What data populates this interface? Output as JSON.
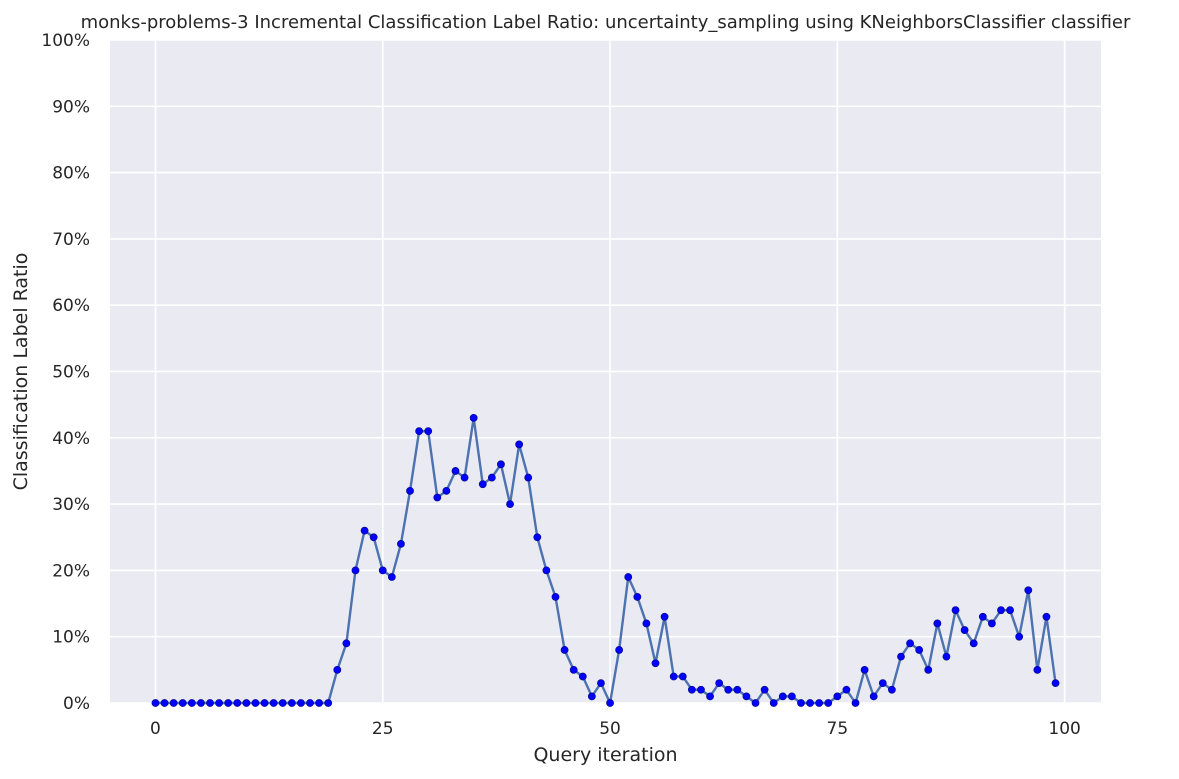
{
  "chart_data": {
    "type": "line",
    "title": "monks-problems-3 Incremental Classification Label Ratio: uncertainty_sampling using KNeighborsClassifier classifier",
    "xlabel": "Query iteration",
    "ylabel": "Classification Label Ratio",
    "xlim": [
      -5,
      104
    ],
    "ylim": [
      0,
      100
    ],
    "x_ticks": [
      0,
      25,
      50,
      75,
      100
    ],
    "y_ticks": [
      0,
      10,
      20,
      30,
      40,
      50,
      60,
      70,
      80,
      90,
      100
    ],
    "y_tick_labels": [
      "0%",
      "10%",
      "20%",
      "30%",
      "40%",
      "50%",
      "60%",
      "70%",
      "80%",
      "90%",
      "100%"
    ],
    "grid": true,
    "legend": "none",
    "colors": {
      "background": "#eaeaf2",
      "grid": "#ffffff",
      "line": "#4c72b0",
      "marker": "#0000ff"
    },
    "series": [
      {
        "x": [
          0,
          1,
          2,
          3,
          4,
          5,
          6,
          7,
          8,
          9,
          10,
          11,
          12,
          13,
          14,
          15,
          16,
          17,
          18,
          19,
          20,
          21,
          22,
          23,
          24,
          25,
          26,
          27,
          28,
          29,
          30,
          31,
          32,
          33,
          34,
          35,
          36,
          37,
          38,
          39,
          40,
          41,
          42,
          43,
          44,
          45,
          46,
          47,
          48,
          49,
          50,
          51,
          52,
          53,
          54,
          55,
          56,
          57,
          58,
          59,
          60,
          61,
          62,
          63,
          64,
          65,
          66,
          67,
          68,
          69,
          70,
          71,
          72,
          73,
          74,
          75,
          76,
          77,
          78,
          79,
          80,
          81,
          82,
          83,
          84,
          85,
          86,
          87,
          88,
          89,
          90,
          91,
          92,
          93,
          94,
          95,
          96,
          97,
          98,
          99
        ],
        "values": [
          0,
          0,
          0,
          0,
          0,
          0,
          0,
          0,
          0,
          0,
          0,
          0,
          0,
          0,
          0,
          0,
          0,
          0,
          0,
          0,
          5,
          9,
          20,
          26,
          25,
          20,
          19,
          24,
          32,
          41,
          41,
          31,
          32,
          35,
          34,
          43,
          33,
          34,
          36,
          30,
          39,
          34,
          25,
          20,
          16,
          8,
          5,
          4,
          1,
          3,
          0,
          8,
          19,
          16,
          12,
          6,
          13,
          4,
          4,
          2,
          2,
          1,
          3,
          2,
          2,
          1,
          0,
          2,
          0,
          1,
          1,
          0,
          0,
          0,
          0,
          1,
          2,
          0,
          5,
          1,
          3,
          2,
          7,
          9,
          8,
          5,
          12,
          7,
          14,
          11,
          9,
          13,
          12,
          14,
          14,
          10,
          17,
          5,
          13,
          3
        ]
      }
    ]
  }
}
